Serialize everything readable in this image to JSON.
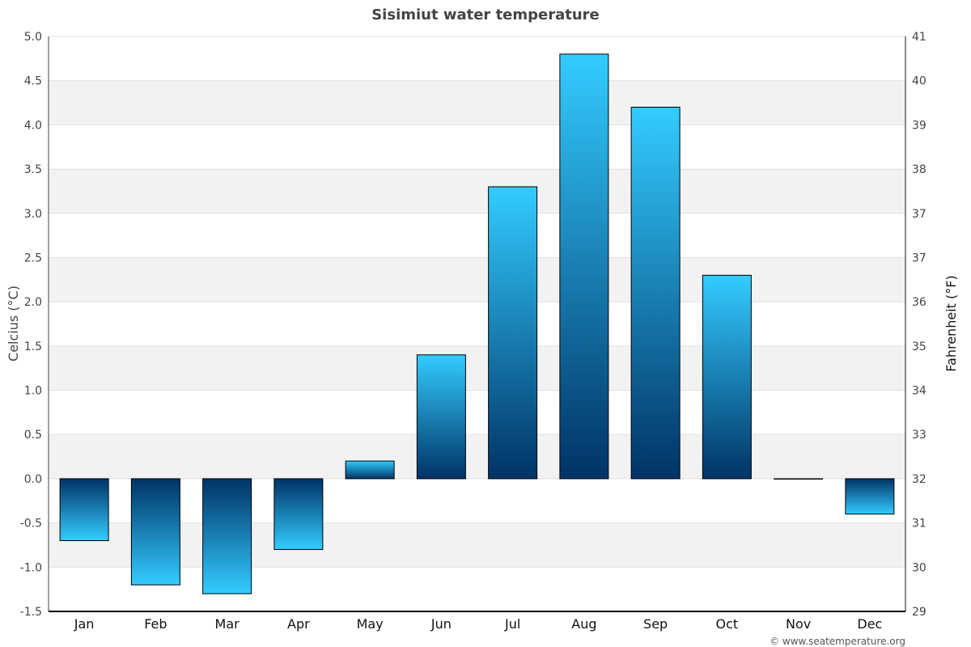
{
  "chart_data": {
    "type": "bar",
    "title": "Sisimiut water temperature",
    "ylabel": "Celcius (°C)",
    "y2label": "Fahrenheit (°F)",
    "categories": [
      "Jan",
      "Feb",
      "Mar",
      "Apr",
      "May",
      "Jun",
      "Jul",
      "Aug",
      "Sep",
      "Oct",
      "Nov",
      "Dec"
    ],
    "values": [
      -0.7,
      -1.2,
      -1.3,
      -0.8,
      0.2,
      1.4,
      3.3,
      4.8,
      4.2,
      2.3,
      0.0,
      -0.4
    ],
    "ylim": [
      -1.5,
      5.0
    ],
    "yticks": [
      "5.0",
      "4.5",
      "4.0",
      "3.5",
      "3.0",
      "2.5",
      "2.0",
      "1.5",
      "1.0",
      "0.5",
      "0.0",
      "-0.5",
      "-1.0",
      "-1.5"
    ],
    "y2ticks": [
      "41",
      "40",
      "39",
      "38",
      "37",
      "37",
      "36",
      "35",
      "34",
      "33",
      "32",
      "31",
      "30",
      "29"
    ],
    "grid": "alternating horizontal bands",
    "colors": {
      "bar_light": "#33ccff",
      "bar_dark": "#003366",
      "band": "#f2f2f2"
    },
    "credit": "© www.seatemperature.org"
  }
}
